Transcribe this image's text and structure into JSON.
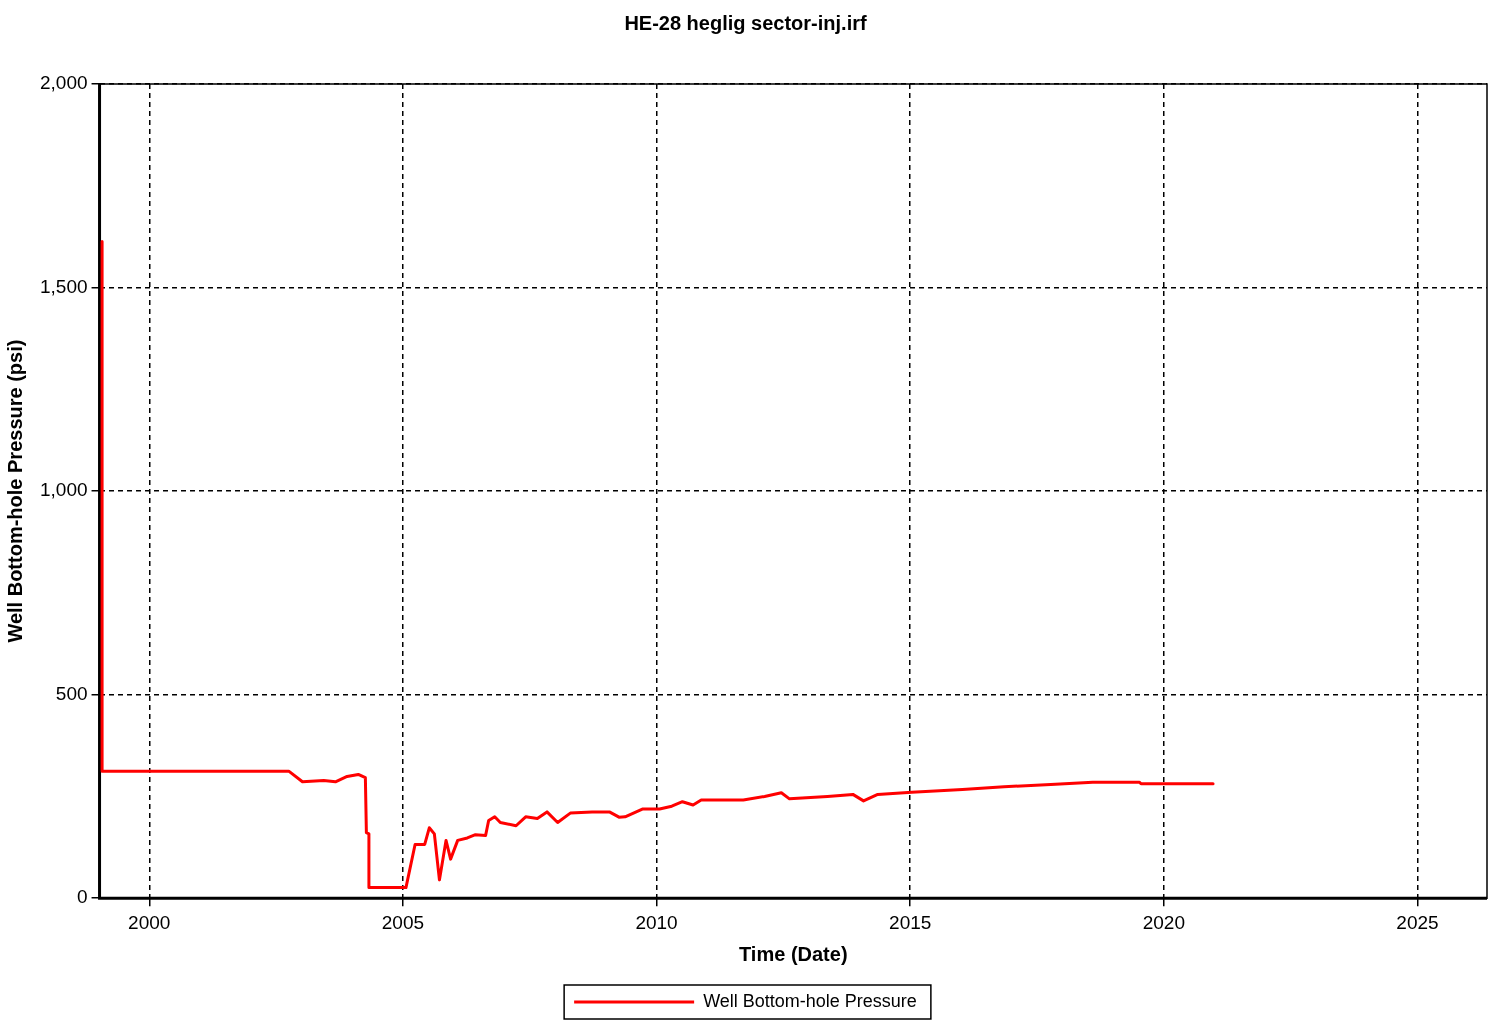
{
  "chart_data": {
    "type": "line",
    "title": "HE-28 heglig sector-inj.irf",
    "xlabel": "Time (Date)",
    "ylabel": "Well Bottom-hole Pressure (psi)",
    "xlim": [
      1999.02,
      2026.37
    ],
    "xticks": [
      2000,
      2005,
      2010,
      2015,
      2020,
      2025
    ],
    "ylim": [
      0,
      2000
    ],
    "yticks": [
      {
        "value": 0,
        "label": "0"
      },
      {
        "value": 500,
        "label": "500"
      },
      {
        "value": 1000,
        "label": "1,000"
      },
      {
        "value": 1500,
        "label": "1,500"
      },
      {
        "value": 2000,
        "label": "2,000"
      }
    ],
    "grid": true,
    "legend": "bottom",
    "marker": "none",
    "line_style": "solid",
    "series": [
      {
        "name": "Well Bottom-hole Pressure",
        "color": "#ff0000",
        "x": [
          1999.07,
          1999.07,
          2002.75,
          2003.02,
          2003.44,
          2003.67,
          2003.9,
          2004.12,
          2004.26,
          2004.28,
          2004.33,
          2004.33,
          2005.06,
          2005.24,
          2005.43,
          2005.52,
          2005.62,
          2005.72,
          2005.85,
          2005.94,
          2006.08,
          2006.27,
          2006.43,
          2006.63,
          2006.69,
          2006.81,
          2006.92,
          2007.23,
          2007.42,
          2007.65,
          2007.84,
          2008.05,
          2008.3,
          2008.73,
          2009.07,
          2009.26,
          2009.38,
          2009.72,
          2010.06,
          2010.3,
          2010.51,
          2010.72,
          2010.88,
          2011.71,
          2012.13,
          2012.46,
          2012.62,
          2013.37,
          2013.87,
          2014.08,
          2014.36,
          2015.03,
          2016.03,
          2016.85,
          2017.77,
          2018.6,
          2019.52,
          2019.55,
          2020.97
        ],
        "values": [
          1613,
          312,
          312,
          286,
          289,
          286,
          299,
          304,
          296,
          161,
          158,
          26,
          26,
          132,
          132,
          173,
          158,
          45,
          142,
          96,
          142,
          148,
          156,
          154,
          191,
          200,
          186,
          178,
          200,
          196,
          212,
          186,
          209,
          212,
          212,
          199,
          200,
          219,
          219,
          226,
          237,
          229,
          241,
          241,
          250,
          259,
          244,
          250,
          255,
          239,
          255,
          260,
          267,
          274,
          279,
          285,
          285,
          281,
          281
        ]
      }
    ]
  }
}
